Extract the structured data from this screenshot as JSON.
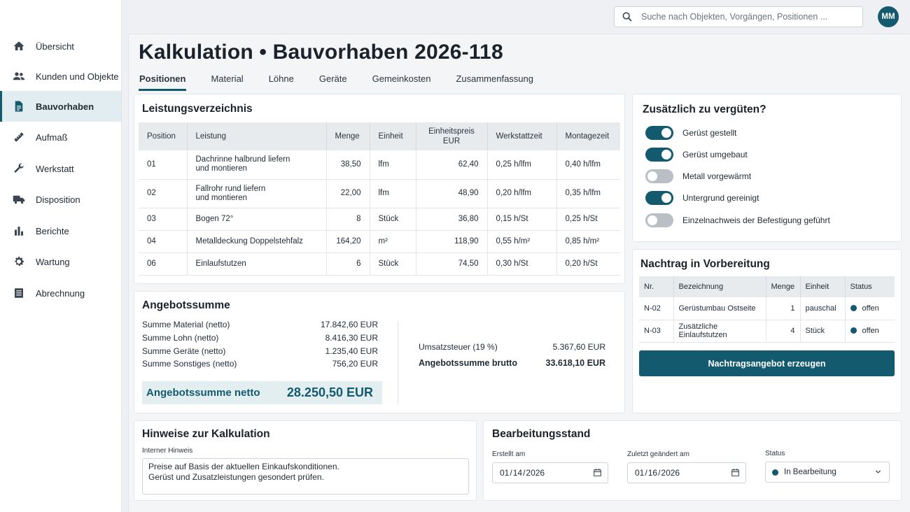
{
  "sidebar": {
    "items": [
      {
        "label": "Übersicht",
        "icon": "home-icon"
      },
      {
        "label": "Kunden und Objekte",
        "icon": "people-icon"
      },
      {
        "label": "Bauvorhaben",
        "icon": "document-icon",
        "active": true
      },
      {
        "label": "Aufmaß",
        "icon": "ruler-icon"
      },
      {
        "label": "Werkstatt",
        "icon": "wrench-icon"
      },
      {
        "label": "Disposition",
        "icon": "truck-icon"
      },
      {
        "label": "Berichte",
        "icon": "bar-chart-icon"
      },
      {
        "label": "Wartung",
        "icon": "gear-icon"
      },
      {
        "label": "Abrechnung",
        "icon": "list-icon"
      }
    ]
  },
  "search": {
    "placeholder": "Suche nach Objekten, Vorgängen, Positionen ..."
  },
  "user": {
    "initials": "MM"
  },
  "page": {
    "title": "Kalkulation • Bauvorhaben 2026-118"
  },
  "tabs": [
    {
      "label": "Positionen",
      "active": true
    },
    {
      "label": "Material"
    },
    {
      "label": "Löhne"
    },
    {
      "label": "Geräte"
    },
    {
      "label": "Gemeinkosten"
    },
    {
      "label": "Zusammenfassung"
    }
  ],
  "leistungsverzeichnis": {
    "title": "Leistungsverzeichnis",
    "columns": {
      "position": "Position",
      "leistung": "Leistung",
      "menge": "Menge",
      "einheit": "Einheit",
      "einheitspreis_1": "Einheitspreis",
      "einheitspreis_2": "EUR",
      "werkstattzeit": "Werkstattzeit",
      "montagezeit": "Montagezeit"
    },
    "rows": [
      {
        "position": "01",
        "leistung_1": "Dachrinne halbrund liefern",
        "leistung_2": "und montieren",
        "menge": "38,50",
        "einheit": "lfm",
        "einheitspreis": "62,40",
        "werkstattzeit": "0,25 h/lfm",
        "montagezeit": "0,40 h/lfm"
      },
      {
        "position": "02",
        "leistung_1": "Fallrohr rund liefern",
        "leistung_2": "und montieren",
        "menge": "22,00",
        "einheit": "lfm",
        "einheitspreis": "48,90",
        "werkstattzeit": "0,20 h/lfm",
        "montagezeit": "0,35 h/lfm"
      },
      {
        "position": "03",
        "leistung_1": "Bogen 72°",
        "leistung_2": "",
        "menge": "8",
        "einheit": "Stück",
        "einheitspreis": "36,80",
        "werkstattzeit": "0,15 h/St",
        "montagezeit": "0,25 h/St"
      },
      {
        "position": "04",
        "leistung_1": "Metalldeckung Doppelstehfalz",
        "leistung_2": "",
        "menge": "164,20",
        "einheit": "m²",
        "einheitspreis": "118,90",
        "werkstattzeit": "0,55 h/m²",
        "montagezeit": "0,85 h/m²"
      },
      {
        "position": "06",
        "leistung_1": "Einlaufstutzen",
        "leistung_2": "",
        "menge": "6",
        "einheit": "Stück",
        "einheitspreis": "74,50",
        "werkstattzeit": "0,30 h/St",
        "montagezeit": "0,20 h/St"
      }
    ]
  },
  "zusaetzlich": {
    "title": "Zusätzlich zu vergüten?",
    "toggles": [
      {
        "label": "Gerüst gestellt",
        "on": true
      },
      {
        "label": "Gerüst umgebaut",
        "on": true
      },
      {
        "label": "Metall vorgewärmt",
        "on": false
      },
      {
        "label": "Untergrund gereinigt",
        "on": true
      },
      {
        "label": "Einzelnachweis der Befestigung geführt",
        "on": false
      }
    ]
  },
  "nachtrag": {
    "title": "Nachtrag in Vorbereitung",
    "columns": {
      "nr": "Nr.",
      "bezeichnung": "Bezeichnung",
      "menge": "Menge",
      "einheit": "Einheit",
      "status": "Status"
    },
    "rows": [
      {
        "nr": "N-02",
        "bezeichnung": "Gerüstumbau Ostseite",
        "menge": "1",
        "einheit": "pauschal",
        "status": "offen"
      },
      {
        "nr": "N-03",
        "bezeichnung": "Zusätzliche Einlaufstutzen",
        "menge": "4",
        "einheit": "Stück",
        "status": "offen"
      }
    ],
    "button": "Nachtragsangebot erzeugen"
  },
  "angebot": {
    "title": "Angebotssumme",
    "lines": [
      {
        "label": "Summe Material (netto)",
        "value": "17.842,60 EUR"
      },
      {
        "label": "Summe Lohn (netto)",
        "value": "8.416,30 EUR"
      },
      {
        "label": "Summe Geräte (netto)",
        "value": "1.235,40 EUR"
      },
      {
        "label": "Summe Sonstiges (netto)",
        "value": "756,20 EUR"
      }
    ],
    "netto_label": "Angebotssumme netto",
    "netto_value": "28.250,50 EUR",
    "ust_label": "Umsatzsteuer (19 %)",
    "ust_value": "5.367,60 EUR",
    "brutto_label": "Angebotssumme brutto",
    "brutto_value": "33.618,10 EUR"
  },
  "hinweise": {
    "title": "Hinweise zur Kalkulation",
    "field_label": "Interner Hinweis",
    "text": "Preise auf Basis der aktuellen Einkaufskonditionen.\nGerüst und Zusatzleistungen gesondert prüfen."
  },
  "bearbeitung": {
    "title": "Bearbeitungsstand",
    "erstellt_label": "Erstellt am",
    "erstellt_value": "2026-01-14",
    "geaendert_label": "Zuletzt geändert am",
    "geaendert_value": "2026-01-16",
    "status_label": "Status",
    "status_value": "In Bearbeitung"
  },
  "colors": {
    "accent": "#135a6e",
    "status_dot": "#135a6e"
  }
}
